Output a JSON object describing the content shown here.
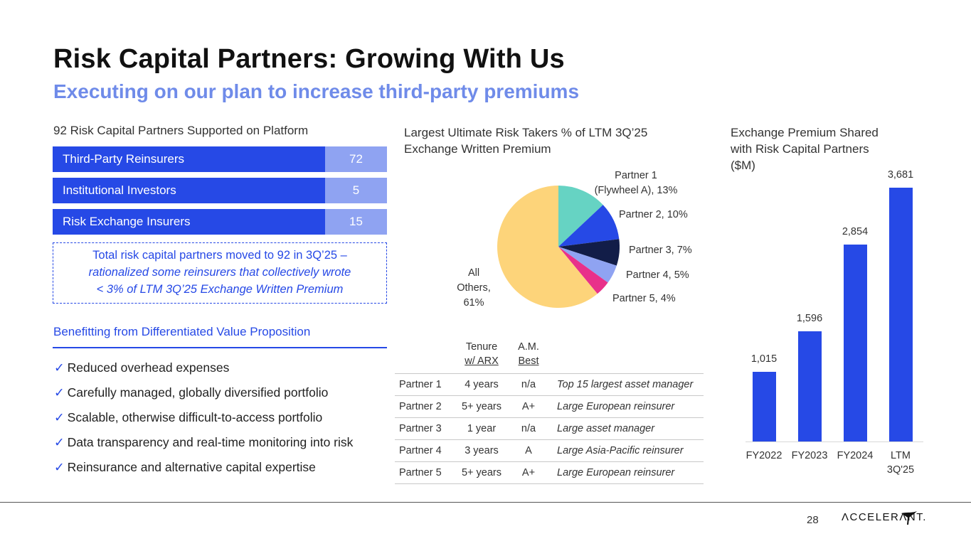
{
  "header": {
    "title": "Risk Capital Partners: Growing With Us",
    "subtitle": "Executing on our plan to increase third-party premiums"
  },
  "partners_panel": {
    "heading": "92 Risk Capital Partners Supported on Platform",
    "rows": [
      {
        "label": "Third-Party Reinsurers",
        "value": "72"
      },
      {
        "label": "Institutional Investors",
        "value": "5"
      },
      {
        "label": "Risk Exchange Insurers",
        "value": "15"
      }
    ],
    "note_line1": "Total risk capital partners moved to 92 in 3Q’25 –",
    "note_line2": "rationalized some reinsurers that collectively wrote",
    "note_line3": "< 3% of LTM 3Q’25 Exchange Written Premium"
  },
  "benefits": {
    "heading": "Benefitting from Differentiated Value Proposition",
    "check": "✓",
    "items": [
      "Reduced overhead expenses",
      "Carefully managed, globally diversified portfolio",
      "Scalable, otherwise difficult-to-access portfolio",
      "Data transparency and real-time monitoring into risk",
      "Reinsurance and alternative capital expertise"
    ]
  },
  "pie_section": {
    "heading_line1": "Largest Ultimate Risk Takers % of LTM 3Q’25",
    "heading_line2": "Exchange Written Premium",
    "labels": {
      "p1_line1": "Partner 1",
      "p1_line2": "(Flywheel A), 13%",
      "p2": "Partner 2, 10%",
      "p3": "Partner 3, 7%",
      "p4": "Partner 4, 5%",
      "p5": "Partner 5, 4%",
      "others_line1": "All",
      "others_line2": "Others,",
      "others_line3": "61%"
    }
  },
  "partner_table": {
    "col_tenure_line1": "Tenure",
    "col_tenure_line2": "w/ ARX",
    "col_rating_line1": "A.M.",
    "col_rating_line2": "Best",
    "rows": [
      {
        "partner": "Partner 1",
        "tenure": "4 years",
        "rating": "n/a",
        "desc": "Top 15 largest asset manager"
      },
      {
        "partner": "Partner 2",
        "tenure": "5+ years",
        "rating": "A+",
        "desc": "Large European reinsurer"
      },
      {
        "partner": "Partner 3",
        "tenure": "1 year",
        "rating": "n/a",
        "desc": "Large asset manager"
      },
      {
        "partner": "Partner 4",
        "tenure": "3 years",
        "rating": "A",
        "desc": "Large Asia-Pacific reinsurer"
      },
      {
        "partner": "Partner 5",
        "tenure": "5+ years",
        "rating": "A+",
        "desc": "Large European reinsurer"
      }
    ]
  },
  "bar_section": {
    "heading_line1": "Exchange Premium Shared",
    "heading_line2": "with Risk Capital Partners",
    "heading_line3": "($M)",
    "ltm_line1": "LTM",
    "ltm_line2": "3Q'25",
    "labels": [
      "1,015",
      "1,596",
      "2,854",
      "3,681"
    ],
    "categories": [
      "FY2022",
      "FY2023",
      "FY2024"
    ]
  },
  "chart_data": [
    {
      "type": "pie",
      "title": "Largest Ultimate Risk Takers % of LTM 3Q’25 Exchange Written Premium",
      "categories": [
        "Partner 1 (Flywheel A)",
        "Partner 2",
        "Partner 3",
        "Partner 4",
        "Partner 5",
        "All Others"
      ],
      "values": [
        13,
        10,
        7,
        5,
        4,
        61
      ],
      "colors": [
        "#66d3c3",
        "#2649e6",
        "#121d48",
        "#8fa3f2",
        "#e8318a",
        "#fdd47a"
      ]
    },
    {
      "type": "bar",
      "title": "Exchange Premium Shared with Risk Capital Partners ($M)",
      "categories": [
        "FY2022",
        "FY2023",
        "FY2024",
        "LTM 3Q'25"
      ],
      "values": [
        1015,
        1596,
        2854,
        3681
      ],
      "ylim": [
        0,
        3681
      ],
      "color": "#2649e6"
    }
  ],
  "footer": {
    "page_number": "28",
    "logo_text": "ΛCCELERΛNT."
  }
}
